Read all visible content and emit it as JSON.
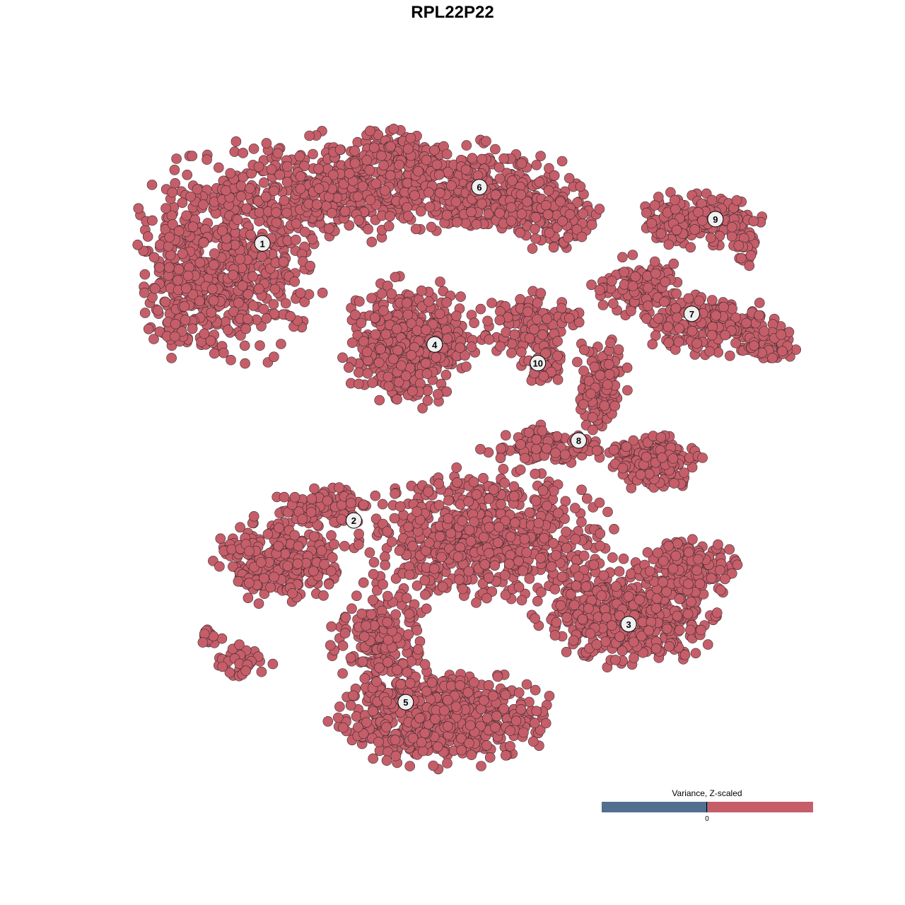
{
  "chart_data": {
    "type": "scatter",
    "title": "RPL22P22",
    "xlabel": "",
    "ylabel": "",
    "axes_visible": false,
    "grid": false,
    "point_color": "#c55e69",
    "point_stroke": "#3a2a2e",
    "clusters": [
      {
        "label": "1",
        "x": -31.6,
        "y": 32.4
      },
      {
        "label": "2",
        "x": -17.7,
        "y": -10.9
      },
      {
        "label": "3",
        "x": 24.1,
        "y": -27.1
      },
      {
        "label": "4",
        "x": -5.4,
        "y": 16.6
      },
      {
        "label": "5",
        "x": -9.8,
        "y": -39.3
      },
      {
        "label": "6",
        "x": 1.4,
        "y": 41.2
      },
      {
        "label": "7",
        "x": 33.7,
        "y": 21.4
      },
      {
        "label": "8",
        "x": 16.5,
        "y": 1.6
      },
      {
        "label": "9",
        "x": 37.3,
        "y": 36.2
      },
      {
        "label": "10",
        "x": 10.3,
        "y": 13.7
      }
    ],
    "legend": {
      "title": "Variance, Z-scaled",
      "placement": "bottom-right",
      "tick_label": "0",
      "low_color": "#526f90",
      "high_color": "#c55e69"
    }
  }
}
